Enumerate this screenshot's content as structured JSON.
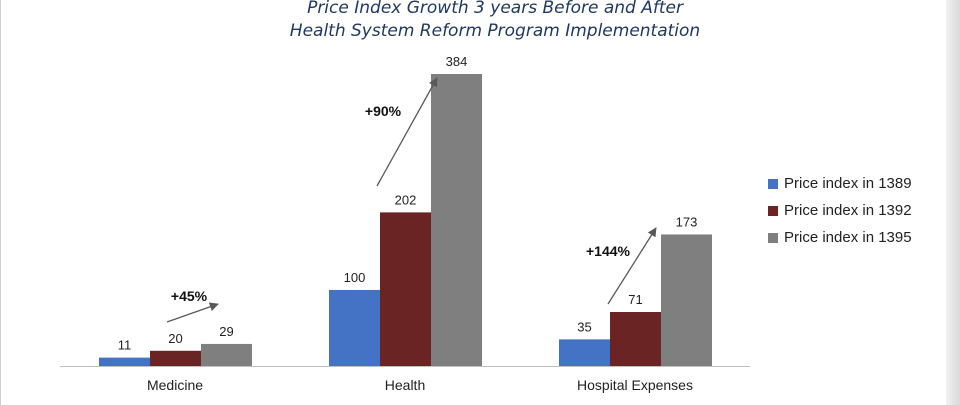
{
  "chart_data": {
    "type": "bar",
    "title_line1": "Price Index Growth 3 years Before and After",
    "title_line2": "Health System Reform Program Implementation",
    "categories": [
      "Medicine",
      "Health",
      "Hospital Expenses"
    ],
    "series": [
      {
        "name": "Price index in 1389",
        "values": [
          11,
          100,
          35
        ],
        "color": "#4472c4"
      },
      {
        "name": "Price index in 1392",
        "values": [
          20,
          202,
          71
        ],
        "color": "#6b2424"
      },
      {
        "name": "Price index in 1395",
        "values": [
          29,
          384,
          173
        ],
        "color": "#7f7f7f"
      }
    ],
    "growth_annotations": [
      "+45%",
      "+90%",
      "+144%"
    ],
    "ylim": [
      0,
      384
    ],
    "grid": false,
    "legend_position": "right"
  }
}
